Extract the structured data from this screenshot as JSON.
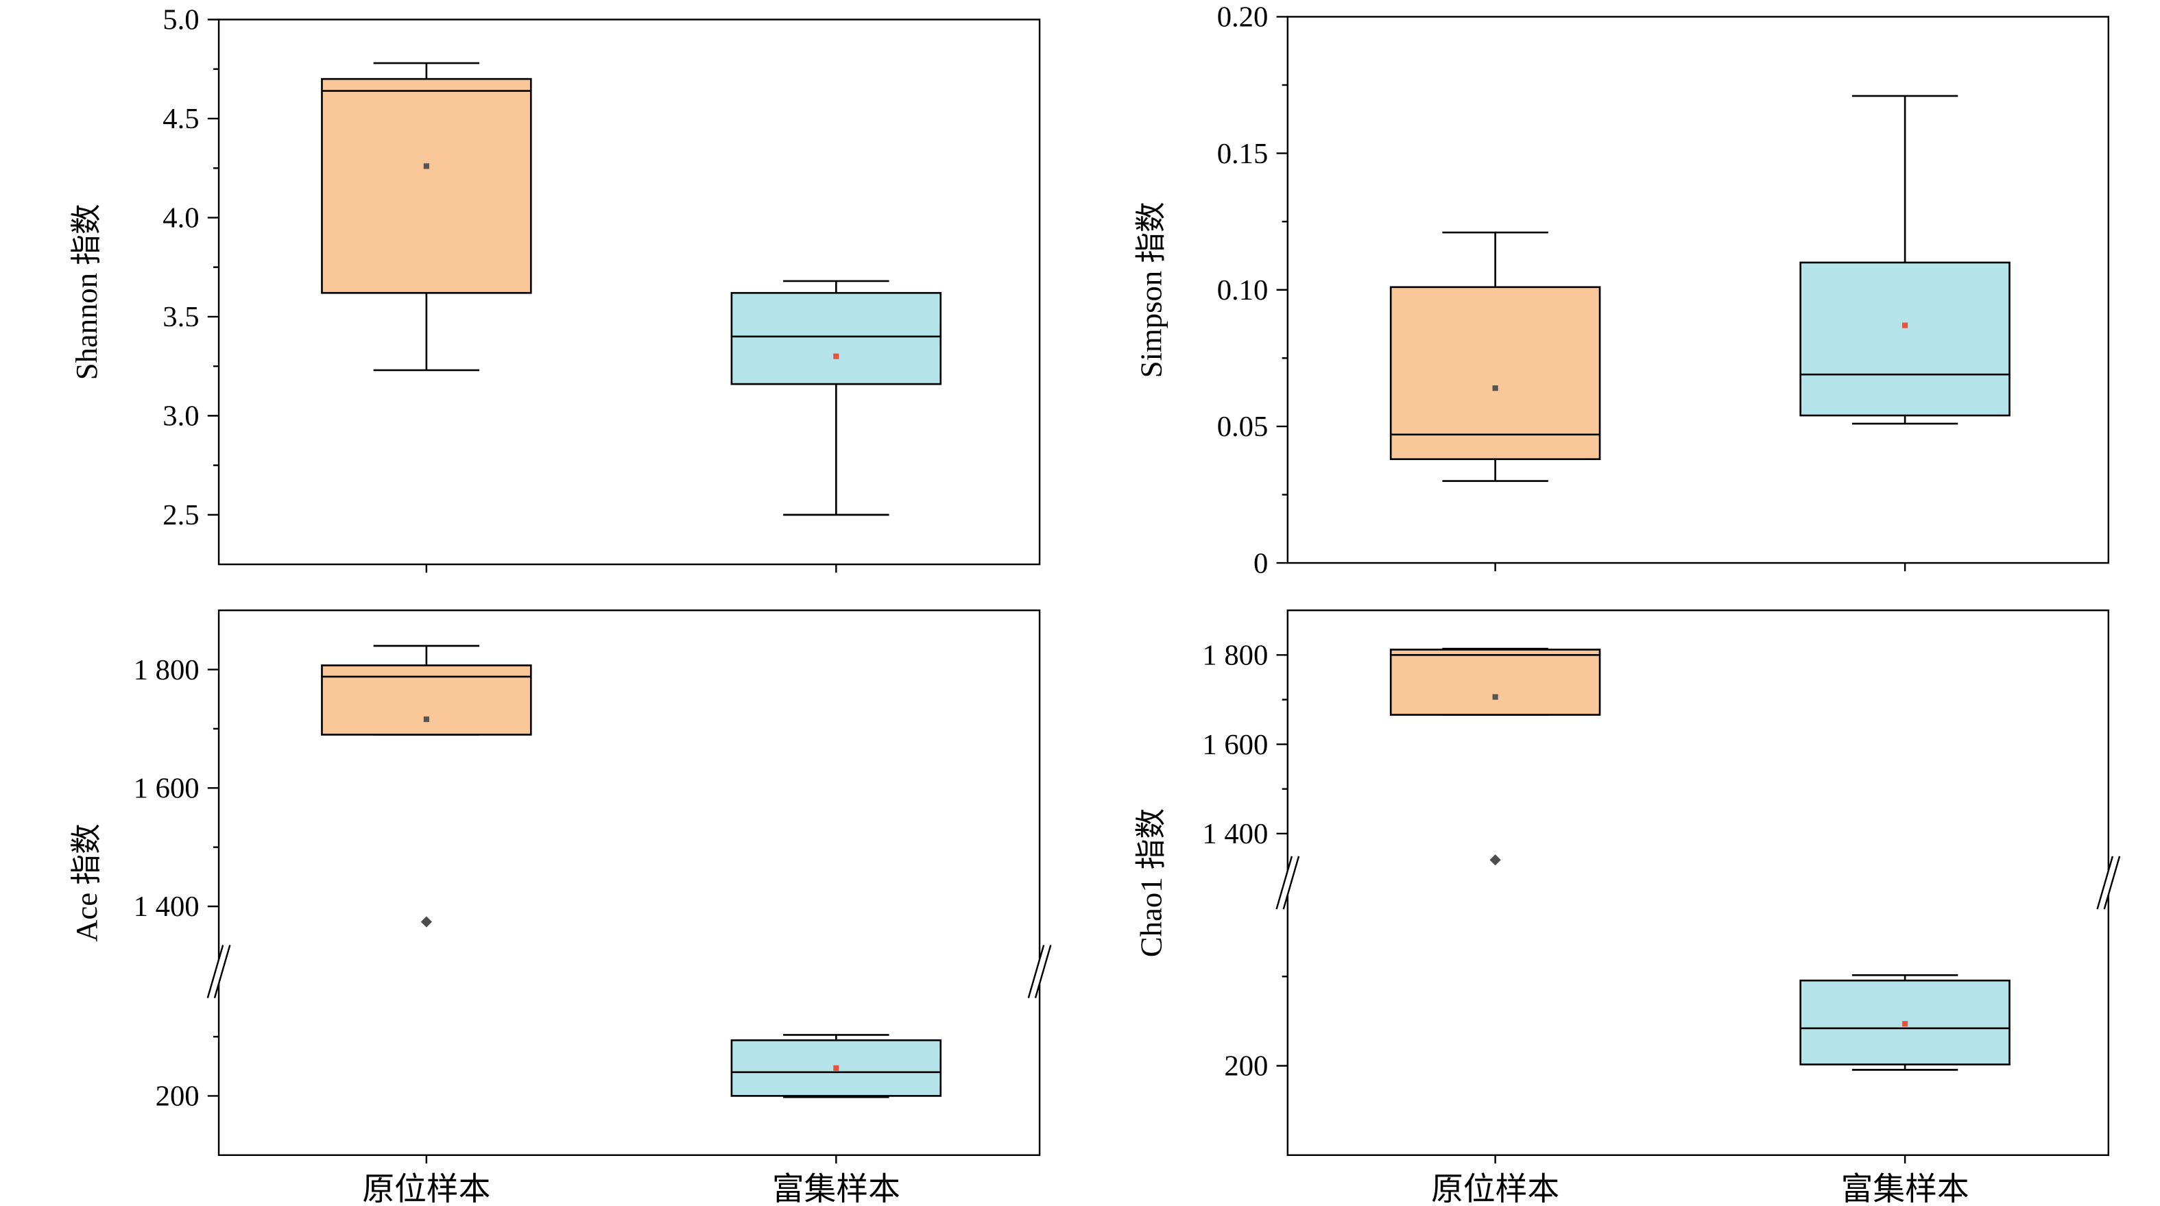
{
  "colors": {
    "background": "#ffffff",
    "line": "#000000",
    "box_fill": [
      "#FAC898",
      "#B4E4E9"
    ],
    "mean_marker": [
      "#555555",
      "#E5533F"
    ],
    "outlier": "#4d4d4d"
  },
  "chart_data": [
    {
      "type": "box",
      "ylabel": "Shannon 指数",
      "ylim": [
        2.25,
        5.0
      ],
      "yticks": [
        {
          "value": 5.0,
          "label": "5.0"
        },
        {
          "value": 4.5,
          "label": "4.5"
        },
        {
          "value": 4.0,
          "label": "4.0"
        },
        {
          "value": 3.5,
          "label": "3.5"
        },
        {
          "value": 3.0,
          "label": "3.0"
        },
        {
          "value": 2.5,
          "label": "2.5"
        }
      ],
      "yminor": [
        4.75,
        4.25,
        3.75,
        3.25,
        2.75
      ],
      "boxes": [
        {
          "min": 3.23,
          "q1": 3.62,
          "median": 4.64,
          "q3": 4.7,
          "max": 4.78,
          "mean": 4.26,
          "outliers": []
        },
        {
          "min": 2.5,
          "q1": 3.16,
          "median": 3.4,
          "q3": 3.62,
          "max": 3.68,
          "mean": 3.3,
          "outliers": []
        }
      ]
    },
    {
      "type": "box",
      "ylabel": "Simpson 指数",
      "ylim": [
        0,
        0.2
      ],
      "yticks": [
        {
          "value": 0.2,
          "label": "0.20"
        },
        {
          "value": 0.15,
          "label": "0.15"
        },
        {
          "value": 0.1,
          "label": "0.10"
        },
        {
          "value": 0.05,
          "label": "0.05"
        },
        {
          "value": 0,
          "label": "0"
        }
      ],
      "yminor": [
        0.175,
        0.125,
        0.075,
        0.025
      ],
      "boxes": [
        {
          "min": 0.03,
          "q1": 0.038,
          "median": 0.047,
          "q3": 0.101,
          "max": 0.121,
          "mean": 0.064,
          "outliers": []
        },
        {
          "min": 0.051,
          "q1": 0.054,
          "median": 0.069,
          "q3": 0.11,
          "max": 0.171,
          "mean": 0.087,
          "outliers": []
        }
      ]
    },
    {
      "type": "box",
      "ylabel": "Ace 指数",
      "categories": [
        "原位样本",
        "富集样本"
      ],
      "ylim": [
        100,
        1900
      ],
      "axis_break": [
        410,
        1290
      ],
      "yticks": [
        {
          "value": 1800,
          "label": "1 800"
        },
        {
          "value": 1600,
          "label": "1 600"
        },
        {
          "value": 1400,
          "label": "1 400"
        },
        {
          "value": 200,
          "label": "200"
        }
      ],
      "yminor": [
        1700,
        1500,
        300
      ],
      "boxes": [
        {
          "min": 1690,
          "q1": 1690,
          "median": 1788,
          "q3": 1807,
          "max": 1840,
          "mean": 1716,
          "outliers": [
            1374
          ]
        },
        {
          "min": 198,
          "q1": 200,
          "median": 240,
          "q3": 294,
          "max": 303,
          "mean": 247,
          "outliers": []
        }
      ]
    },
    {
      "type": "box",
      "ylabel": "Chao1 指数",
      "categories": [
        "原位样本",
        "富集样本"
      ],
      "ylim": [
        0,
        1900
      ],
      "axis_break": [
        610,
        1290
      ],
      "yticks": [
        {
          "value": 1800,
          "label": "1 800"
        },
        {
          "value": 1600,
          "label": "1 600"
        },
        {
          "value": 1400,
          "label": "1 400"
        },
        {
          "value": 200,
          "label": "200"
        }
      ],
      "yminor": [
        1700,
        1500,
        400
      ],
      "boxes": [
        {
          "min": 1666,
          "q1": 1666,
          "median": 1800,
          "q3": 1812,
          "max": 1814,
          "mean": 1706,
          "outliers": [
            1341
          ]
        },
        {
          "min": 191,
          "q1": 203,
          "median": 284,
          "q3": 391,
          "max": 403,
          "mean": 294,
          "outliers": []
        }
      ]
    }
  ]
}
